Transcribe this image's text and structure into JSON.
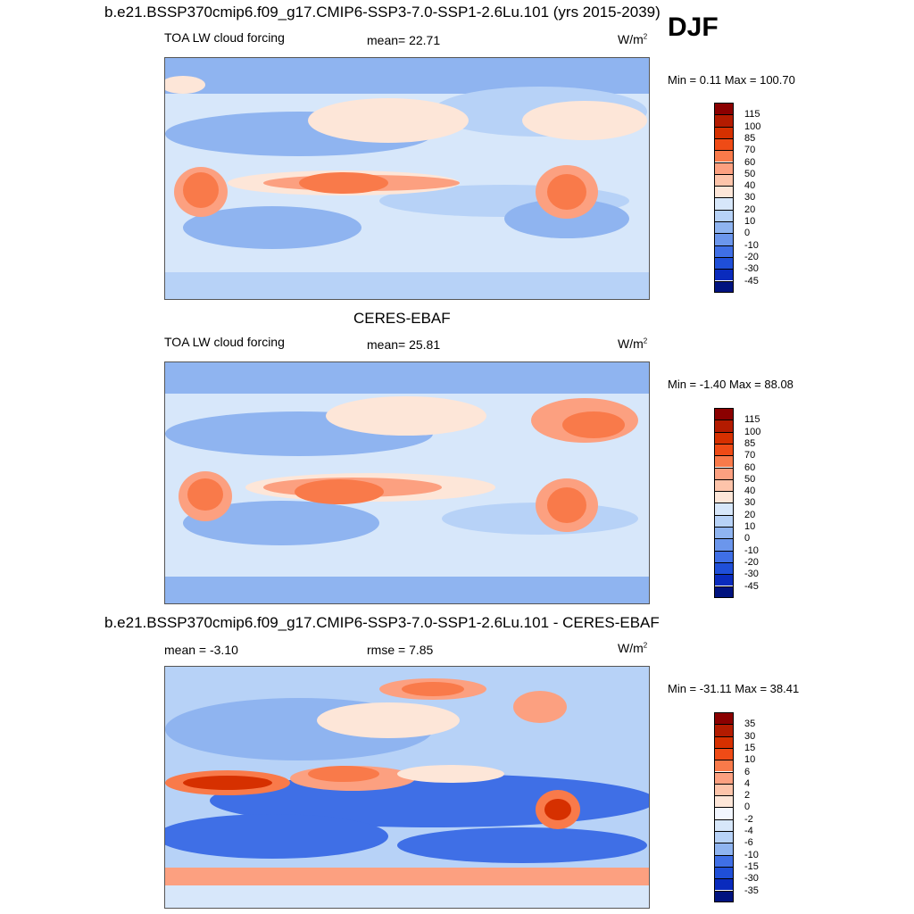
{
  "header": {
    "title": "b.e21.BSSP370cmip6.f09_g17.CMIP6-SSP3-7.0-SSP1-2.6Lu.101 (yrs 2015-2039)",
    "season": "DJF"
  },
  "panels": [
    {
      "title": "",
      "left_label": "TOA LW cloud forcing",
      "center_label": "mean=  22.71",
      "units": "W/m",
      "units_sup": "2",
      "minmax": "Min =   0.11 Max = 100.70"
    },
    {
      "title": "CERES-EBAF",
      "left_label": "TOA LW cloud forcing",
      "center_label": "mean=  25.81",
      "units": "W/m",
      "units_sup": "2",
      "minmax": "Min =  -1.40 Max =  88.08"
    },
    {
      "title": "b.e21.BSSP370cmip6.f09_g17.CMIP6-SSP3-7.0-SSP1-2.6Lu.101 - CERES-EBAF",
      "left_label": "mean =  -3.10",
      "center_label": "rmse =   7.85",
      "units": "W/m",
      "units_sup": "2",
      "minmax": "Min = -31.11 Max =  38.41"
    }
  ],
  "legends": {
    "abs": {
      "labels": [
        "115",
        "100",
        "85",
        "70",
        "60",
        "50",
        "40",
        "30",
        "20",
        "10",
        "0",
        "-10",
        "-20",
        "-30",
        "-45"
      ],
      "colors": [
        "#8b0000",
        "#b31b00",
        "#d63000",
        "#ef4b16",
        "#f97a4a",
        "#fca080",
        "#fdc4aa",
        "#fde6d8",
        "#d7e7fa",
        "#b7d2f7",
        "#8fb4f0",
        "#6b96ec",
        "#3f6fe6",
        "#1f4fd8",
        "#0a2bbd",
        "#00137f"
      ]
    },
    "diff": {
      "labels": [
        "35",
        "30",
        "15",
        "10",
        "6",
        "4",
        "2",
        "0",
        "-2",
        "-4",
        "-6",
        "-10",
        "-15",
        "-30",
        "-35"
      ],
      "colors": [
        "#8b0000",
        "#b31b00",
        "#d63000",
        "#ef4b16",
        "#f97a4a",
        "#fca080",
        "#fdc4aa",
        "#fde6d8",
        "#f2f6ff",
        "#d7e7fa",
        "#b7d2f7",
        "#8fb4f0",
        "#3f6fe6",
        "#1f4fd8",
        "#0a2bbd",
        "#00137f"
      ]
    }
  }
}
